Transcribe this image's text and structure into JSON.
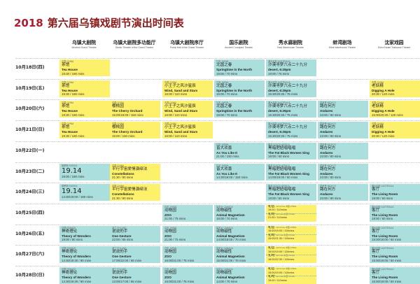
{
  "title": {
    "year": "2018",
    "text": "第六届乌镇戏剧节演出时间表"
  },
  "venues": [
    {
      "cn": "乌镇大剧院",
      "en": "Wuzhen Grand Theatre"
    },
    {
      "cn": "乌镇大剧院多功能厅",
      "en": "Studio Theatre of the Grand Theatre"
    },
    {
      "cn": "乌镇大剧院序厅",
      "en": "Portal Hall of the Grand Theatre"
    },
    {
      "cn": "国乐剧院",
      "en": "Ancient Courtyard Theatre"
    },
    {
      "cn": "秀水廊剧院",
      "en": "East Warehouse Theatre"
    },
    {
      "cn": "蚌湾剧场",
      "en": "West Warehouse Theatre"
    },
    {
      "cn": "沈家戏园",
      "en": "Shen Estate Teahouse Theatre"
    }
  ],
  "dates": [
    "10月18日(四)",
    "10月19日(五)",
    "10月20日(六)",
    "10月21日(日)",
    "10月22日(一)",
    "10月23日(二)",
    "10月24日(三)",
    "10月25日(四)",
    "10月26日(五)",
    "10月27日(六)",
    "10月28日(日)"
  ],
  "cells": [
    {
      "row": 0,
      "col": 0,
      "color": "y",
      "country": "中国 CHINA",
      "cn": "茶馆",
      "en": "Tea House",
      "time": "19:30 / 180 mins"
    },
    {
      "row": 0,
      "col": 3,
      "color": "t",
      "country": "日本 JAPAN",
      "cn": "北国之春",
      "en": "Springtime in the North",
      "time": "19:00 / 70 mins"
    },
    {
      "row": 0,
      "col": 4,
      "color": "t",
      "country": "澳大利亚 AUSTRALIA",
      "cn": "沙漠寻梦六点二十九分",
      "en": "desert, 6:29pm",
      "time": "19:00 / 75 mins"
    },
    {
      "row": 1,
      "col": 0,
      "color": "y",
      "country": "中国 CHINA",
      "cn": "茶馆",
      "en": "Tea House",
      "time": "19:30 / 180 mins"
    },
    {
      "row": 1,
      "col": 2,
      "color": "y",
      "country": "中国 CHINA",
      "cn": "小王子之风沙星辰",
      "en": "Wind, Sand and Stars",
      "time": "16:00 / 110 mins"
    },
    {
      "row": 1,
      "col": 3,
      "color": "t",
      "country": "日本 JAPAN",
      "cn": "北国之春",
      "en": "Springtime in the North",
      "time": "19:00 / 70 mins"
    },
    {
      "row": 1,
      "col": 4,
      "color": "t",
      "country": "澳大利亚 AUSTRALIA",
      "cn": "沙漠寻梦六点二十九分",
      "en": "desert, 6:29pm",
      "time": "15:30/20:30 / 75 mins"
    },
    {
      "row": 1,
      "col": 6,
      "color": "y",
      "country": "中国 CHINA",
      "cn": "老妖精",
      "en": "Digging A Hole",
      "time": "20:30 / 120 mins"
    },
    {
      "row": 2,
      "col": 0,
      "color": "y",
      "country": "中国 CHINA",
      "cn": "茶馆",
      "en": "Tea House",
      "time": "19:30 / 180 mins"
    },
    {
      "row": 2,
      "col": 1,
      "color": "y",
      "country": "中国 CHINA",
      "cn": "樱桃园",
      "en": "The Cherry Orchard",
      "time": "15:00/19:00 / 150 mins"
    },
    {
      "row": 2,
      "col": 2,
      "color": "y",
      "country": "中国 CHINA",
      "cn": "小王子之风沙星辰",
      "en": "Wind, Sand and Stars",
      "time": "16:00 / 110 mins"
    },
    {
      "row": 2,
      "col": 3,
      "color": "t",
      "country": "日本 JAPAN",
      "cn": "北国之春",
      "en": "Springtime in the North",
      "time": "19:00 / 70 mins"
    },
    {
      "row": 2,
      "col": 4,
      "color": "t",
      "country": "澳大利亚 AUSTRALIA",
      "cn": "沙漠寻梦六点二十九分",
      "en": "desert, 6:29pm",
      "time": "15:30/20:30 / 75 mins"
    },
    {
      "row": 2,
      "col": 5,
      "color": "t",
      "country": "墨西哥 MEXICO",
      "cn": "路在何方",
      "en": "Andares",
      "time": "23:00 / 80 mins"
    },
    {
      "row": 2,
      "col": 6,
      "color": "y",
      "country": "中国 CHINA",
      "cn": "老妖精",
      "en": "Digging A Hole",
      "time": "15:00/20:30 / 120 mins"
    },
    {
      "row": 3,
      "col": 0,
      "color": "y",
      "country": "中国 CHINA",
      "cn": "茶馆",
      "en": "Tea House",
      "time": "19:30 / 180 mins"
    },
    {
      "row": 3,
      "col": 1,
      "color": "y",
      "country": "中国 CHINA",
      "cn": "樱桃园",
      "en": "The Cherry Orchard",
      "time": "15:00 / 150 mins"
    },
    {
      "row": 3,
      "col": 2,
      "color": "y",
      "country": "中国 CHINA",
      "cn": "小王子之风沙星辰",
      "en": "Wind, Sand and Stars",
      "time": "16:00 / 110 mins"
    },
    {
      "row": 3,
      "col": 4,
      "color": "t",
      "country": "澳大利亚 AUSTRALIA",
      "cn": "沙漠寻梦六点二十九分",
      "en": "desert, 6:29pm",
      "time": "15:30/20:30 / 75 mins"
    },
    {
      "row": 3,
      "col": 5,
      "color": "t",
      "country": "墨西哥 MEXICO",
      "cn": "路在何方",
      "en": "Andares",
      "time": "23:00 / 80 mins"
    },
    {
      "row": 3,
      "col": 6,
      "color": "y",
      "country": "中国 CHINA",
      "cn": "老妖精",
      "en": "Digging A Hole",
      "time": "20:30 / 120 mins"
    },
    {
      "row": 4,
      "col": 3,
      "color": "t",
      "country": "日本 JAPAN",
      "cn": "皆大欢喜",
      "en": "As You Like It",
      "time": "21:00 / 150 mins"
    },
    {
      "row": 4,
      "col": 4,
      "color": "t",
      "country": "南非 SOUTH AFRICA",
      "cn": "黑暗肥妞唱唱唱",
      "en": "The Fat Black Women Sing",
      "time": "19:00 / 60 mins"
    },
    {
      "row": 4,
      "col": 5,
      "color": "t",
      "country": "墨西哥 MEXICO",
      "cn": "路在何方",
      "en": "Andares",
      "time": "23:00 / 80 mins"
    },
    {
      "row": 5,
      "col": 0,
      "color": "t",
      "country": "俄罗斯 RUSSIA",
      "cn": "19.14",
      "en": "",
      "time": "19:00 / 180 mins",
      "big": true
    },
    {
      "row": 5,
      "col": 1,
      "color": "y",
      "country": "中国 CHINA",
      "cn": "平行宇宙爱情演绎法",
      "en": "Constellations",
      "time": "21:30 / 90 mins"
    },
    {
      "row": 5,
      "col": 3,
      "color": "t",
      "country": "日本 JAPAN",
      "cn": "皆大欢喜",
      "en": "As You Like It",
      "time": "14:30/19:00 / 150 mins"
    },
    {
      "row": 5,
      "col": 4,
      "color": "t",
      "country": "南非 SOUTH AFRICA",
      "cn": "黑暗肥妞唱唱唱",
      "en": "The Fat Black Women Sing",
      "time": "14:00/19:00 / 60 mins"
    },
    {
      "row": 5,
      "col": 5,
      "color": "t",
      "country": "墨西哥 MEXICO",
      "cn": "路在何方",
      "en": "Andares",
      "time": "23:00 / 80 mins"
    },
    {
      "row": 6,
      "col": 0,
      "color": "t",
      "country": "俄罗斯 RUSSIA",
      "cn": "19.14",
      "en": "",
      "time": "14:30/19:00 / 180 mins",
      "big": true
    },
    {
      "row": 6,
      "col": 1,
      "color": "y",
      "country": "中国 CHINA",
      "cn": "平行宇宙爱情演绎法",
      "en": "Constellations",
      "time": "21:30 / 90 mins"
    },
    {
      "row": 6,
      "col": 4,
      "color": "t",
      "country": "南非 SOUTH AFRICA",
      "cn": "黑暗肥妞唱唱唱",
      "en": "The Fat Black Women Sing",
      "time": "19:00 / 60 mins"
    },
    {
      "row": 6,
      "col": 5,
      "color": "t",
      "country": "墨西哥 MEXICO",
      "cn": "路在何方",
      "en": "Andares",
      "time": "23:00 / 80 mins"
    },
    {
      "row": 6,
      "col": 6,
      "color": "t",
      "country": "澳大利亚 AUSTRALIA",
      "cn": "客厅",
      "en": "The Living Room",
      "time": "19:00 / 60 mins"
    },
    {
      "row": 7,
      "col": 2,
      "color": "t",
      "country": "日本 JAPAN",
      "cn": "动物园",
      "en": "ZOO",
      "time": "21:00 / 75 mins"
    },
    {
      "row": 7,
      "col": 3,
      "color": "t",
      "country": "加拿大 CANADA",
      "cn": "动物磁性",
      "en": "Animal Magnetism",
      "time": "19:00 / 70 mins"
    },
    {
      "row": 7,
      "col": 6,
      "color": "t",
      "country": "澳大利亚 AUSTRALIA",
      "cn": "客厅",
      "en": "The Living Room",
      "time": "19:00 / 60 mins"
    },
    {
      "row": 8,
      "col": 0,
      "color": "t",
      "country": "法国 FRANCE",
      "cn": "神奇理论",
      "en": "Theory of Wonders",
      "time": "19:00 / 80 mins"
    },
    {
      "row": 8,
      "col": 1,
      "color": "t",
      "country": "波兰 POLAND",
      "cn": "说说的手",
      "en": "One Gesture",
      "time": "22:00 / 65 mins"
    },
    {
      "row": 8,
      "col": 2,
      "color": "t",
      "country": "日本 JAPAN",
      "cn": "动物园",
      "en": "ZOO",
      "time": "21:00 / 75 mins"
    },
    {
      "row": 8,
      "col": 3,
      "color": "t",
      "country": "加拿大 CANADA",
      "cn": "动物磁性",
      "en": "Animal Magnetism",
      "time": "14:00/19:00 / 70 mins"
    },
    {
      "row": 8,
      "col": 6,
      "color": "t",
      "country": "澳大利亚 AUSTRALIA",
      "cn": "客厅",
      "en": "The Living Room",
      "time": "15:00/19:00 / 60 mins"
    },
    {
      "row": 9,
      "col": 0,
      "color": "t",
      "country": "法国 FRANCE",
      "cn": "神奇理论",
      "en": "Theory of Wonders",
      "time": "14:30/19:30 / 80 mins"
    },
    {
      "row": 9,
      "col": 1,
      "color": "t",
      "country": "波兰 POLAND",
      "cn": "说说的手",
      "en": "One Gesture",
      "time": "17:00/22:00 / 65 mins"
    },
    {
      "row": 9,
      "col": 2,
      "color": "t",
      "country": "日本 JAPAN",
      "cn": "动物园",
      "en": "ZOO",
      "time": "16:00/21:00 / 75 mins"
    },
    {
      "row": 9,
      "col": 3,
      "color": "t",
      "country": "加拿大 CANADA",
      "cn": "动物磁性",
      "en": "Animal Magnetism",
      "time": "15:00/21:00 / 70 mins"
    },
    {
      "row": 9,
      "col": 6,
      "color": "t",
      "country": "澳大利亚 AUSTRALIA",
      "cn": "客厅",
      "en": "The Living Room",
      "time": "15:00/19:00 / 60 mins"
    },
    {
      "row": 10,
      "col": 0,
      "color": "t",
      "country": "法国 FRANCE",
      "cn": "神奇理论",
      "en": "Theory of Wonders",
      "time": "14:30/19:30 / 80 mins"
    },
    {
      "row": 10,
      "col": 1,
      "color": "t",
      "country": "波兰 POLAND",
      "cn": "说说的手",
      "en": "One Gesture",
      "time": "13:00/17:00 / 65 mins"
    },
    {
      "row": 10,
      "col": 2,
      "color": "t",
      "country": "日本 JAPAN",
      "cn": "动物园",
      "en": "ZOO",
      "time": "16:00/21:00 / 75 mins"
    },
    {
      "row": 10,
      "col": 3,
      "color": "t",
      "country": "加拿大 CANADA",
      "cn": "动物磁性",
      "en": "Animal Magnetism",
      "time": "14:00 / 70 mins"
    },
    {
      "row": 10,
      "col": 6,
      "color": "t",
      "country": "澳大利亚 AUSTRALIA",
      "cn": "客厅",
      "en": "The Living Room",
      "time": "15:00/19:00 / 60 mins"
    }
  ],
  "split_cells": [
    {
      "row": 7,
      "col": 4,
      "color": "y",
      "top": {
        "cn": "初恋",
        "en": "1st times",
        "time": "19:00 / 110mins",
        "country": "中国 CHINA"
      },
      "bottom": {
        "cn": "初吻",
        "en": "1st kiss",
        "time": "21:30 / 110mins",
        "country": "中国 CHINA"
      }
    },
    {
      "row": 8,
      "col": 4,
      "color": "y",
      "top": {
        "cn": "初恋",
        "en": "1st times",
        "time": "15:00/19:00 / 110mins",
        "country": "中国 CHINA"
      },
      "bottom": {
        "cn": "初吻",
        "en": "1st kiss",
        "time": "15:00/21:30 / 110mins",
        "country": "中国 CHINA"
      }
    },
    {
      "row": 9,
      "col": 4,
      "color": "y",
      "top": {
        "cn": "初恋",
        "en": "1st times",
        "time": "15:00/19:00 / 110mins",
        "country": "中国 CHINA"
      },
      "bottom": {
        "cn": "初吻",
        "en": "1st kiss",
        "time": "16:00/22:30 / 110mins",
        "country": "中国 CHINA"
      }
    },
    {
      "row": 10,
      "col": 4,
      "color": "y",
      "top": {
        "cn": "初恋",
        "en": "1st times",
        "time": "15:00/19:00 / 110mins",
        "country": "中国 CHINA"
      },
      "bottom": {
        "cn": "初吻",
        "en": "1st kiss",
        "time": "15:00 / 110mins",
        "country": "中国 CHINA"
      }
    }
  ]
}
